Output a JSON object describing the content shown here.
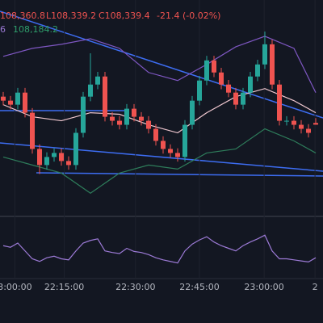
{
  "chart_data": [
    {
      "type": "candlestick",
      "header": [
        "108,360.8",
        "L108,339.2",
        "C108,339.4",
        "-21.4 (-0.02%)"
      ],
      "indicator_header": [
        "6",
        "108,184.2"
      ],
      "up_color": "#26a69a",
      "down_color": "#ef5350",
      "ylim": [
        108090,
        108690
      ],
      "xticks": [
        {
          "value": 1.6,
          "label": "3:00:00"
        },
        {
          "value": 8.4,
          "label": "22:15:00"
        },
        {
          "value": 18.2,
          "label": "22:30:00"
        },
        {
          "value": 27,
          "label": "22:45:00"
        },
        {
          "value": 35.9,
          "label": "23:00:00"
        },
        {
          "value": 42.9,
          "label": "2"
        }
      ],
      "open": [
        108430,
        108417,
        108404,
        108443,
        108378,
        108261,
        108209,
        108235,
        108248,
        108222,
        108209,
        108313,
        108430,
        108469,
        108495,
        108365,
        108352,
        108339,
        108391,
        108365,
        108352,
        108326,
        108287,
        108261,
        108248,
        108235,
        108339,
        108417,
        108482,
        108547,
        108508,
        108469,
        108443,
        108404,
        108443,
        108495,
        108534,
        108599,
        108469,
        108352,
        108352,
        108339,
        108326,
        108345
      ],
      "high": [
        108445,
        108432,
        108458,
        108458,
        108393,
        108276,
        108250,
        108263,
        108263,
        108237,
        108328,
        108445,
        108570,
        108510,
        108510,
        108380,
        108367,
        108406,
        108406,
        108380,
        108367,
        108341,
        108302,
        108276,
        108263,
        108354,
        108432,
        108497,
        108562,
        108562,
        108523,
        108484,
        108458,
        108458,
        108510,
        108549,
        108640,
        108614,
        108484,
        108367,
        108367,
        108354,
        108341,
        108360.8
      ],
      "low": [
        108402,
        108389,
        108389,
        108363,
        108246,
        108180,
        108194,
        108220,
        108207,
        108194,
        108194,
        108298,
        108415,
        108454,
        108350,
        108337,
        108324,
        108324,
        108350,
        108337,
        108311,
        108272,
        108246,
        108233,
        108220,
        108220,
        108324,
        108402,
        108467,
        108493,
        108454,
        108428,
        108389,
        108389,
        108428,
        108480,
        108519,
        108454,
        108337,
        108337,
        108324,
        108311,
        108298,
        108339.2
      ],
      "close": [
        108417,
        108404,
        108443,
        108378,
        108261,
        108209,
        108235,
        108248,
        108222,
        108209,
        108313,
        108430,
        108469,
        108495,
        108365,
        108352,
        108339,
        108391,
        108365,
        108352,
        108326,
        108287,
        108261,
        108248,
        108235,
        108339,
        108417,
        108482,
        108547,
        108508,
        108469,
        108443,
        108404,
        108443,
        108495,
        108534,
        108599,
        108469,
        108352,
        108352,
        108339,
        108326,
        108313,
        108339.4
      ],
      "bands": {
        "x": [
          0,
          4,
          8,
          12,
          16,
          20,
          24,
          28,
          32,
          36,
          40,
          43
        ],
        "series": [
          {
            "color": "#7e57c2",
            "values": [
              108560,
              108586,
              108599,
              108617,
              108586,
              108508,
              108482,
              108534,
              108591,
              108625,
              108586,
              108443
            ]
          },
          {
            "color": "#f0c8d0",
            "values": [
              108404,
              108365,
              108352,
              108378,
              108373,
              108339,
              108313,
              108378,
              108430,
              108456,
              108417,
              108378
            ]
          },
          {
            "color": "#2e7d5b",
            "values": [
              108235,
              108209,
              108183,
              108118,
              108183,
              108209,
              108196,
              108248,
              108261,
              108326,
              108287,
              108248
            ]
          }
        ]
      }
    },
    {
      "type": "line",
      "color": "#9c7ad6",
      "ylim": [
        0,
        100
      ],
      "values": [
        55,
        52,
        60,
        45,
        30,
        25,
        32,
        35,
        30,
        28,
        45,
        60,
        65,
        68,
        45,
        42,
        40,
        50,
        44,
        42,
        38,
        32,
        28,
        25,
        22,
        45,
        58,
        66,
        72,
        62,
        55,
        50,
        45,
        55,
        62,
        68,
        75,
        45,
        30,
        30,
        28,
        26,
        24,
        32
      ]
    }
  ]
}
